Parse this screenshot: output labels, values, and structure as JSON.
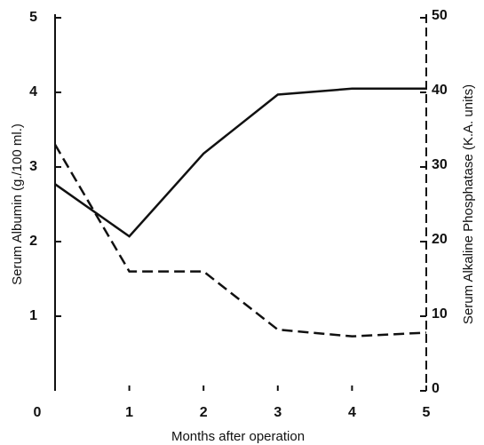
{
  "chart_data": {
    "type": "line",
    "x": [
      0,
      1,
      2,
      3,
      4,
      5
    ],
    "xlabel": "Months after operation",
    "ylabel": "Serum Albumin (g./100 ml.)",
    "y2label": "Serum Alkaline Phosphatase (K.A. units)",
    "xlim": [
      0,
      5
    ],
    "xticks": [
      0,
      1,
      2,
      3,
      4,
      5
    ],
    "ylim": [
      0,
      5
    ],
    "yticks": [
      1,
      2,
      3,
      4,
      5
    ],
    "y2lim": [
      0,
      50
    ],
    "y2ticks": [
      0,
      10,
      20,
      30,
      40,
      50
    ],
    "series": [
      {
        "color": "#111111",
        "values": [
          2.77,
          2.07,
          3.18,
          3.97,
          4.05,
          4.05
        ]
      },
      {
        "color": "#111111",
        "axis": "y2",
        "values": [
          33,
          16,
          16,
          8.2,
          7.3,
          7.8
        ]
      }
    ]
  }
}
